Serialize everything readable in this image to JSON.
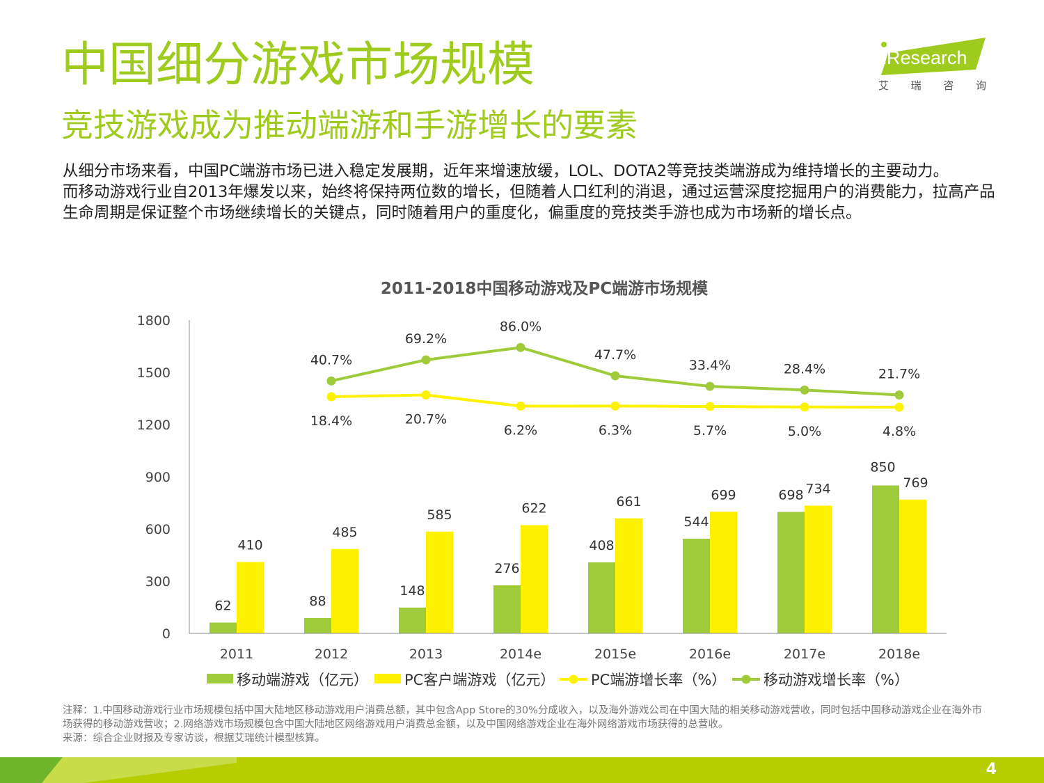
{
  "header": {
    "title": "中国细分游戏市场规模",
    "subtitle": "竞技游戏成为推动端游和手游增长的要素"
  },
  "logo": {
    "brand": "iResearch",
    "cn": [
      "艾",
      "瑞",
      "咨",
      "询"
    ]
  },
  "body": {
    "paragraph1": "从细分市场来看，中国PC端游市场已进入稳定发展期，近年来增速放缓，LOL、DOTA2等竞技类端游成为维持增长的主要动力。",
    "paragraph2": "而移动游戏行业自2013年爆发以来，始终将保持两位数的增长，但随着人口红利的消退，通过运营深度挖掘用户的消费能力，拉高产品生命周期是保证整个市场继续增长的关键点，同时随着用户的重度化，偏重度的竞技类手游也成为市场新的增长点。"
  },
  "chart_data": {
    "type": "bar",
    "title": "2011-2018中国移动游戏及PC端游市场规模",
    "categories": [
      "2011",
      "2012",
      "2013",
      "2014e",
      "2015e",
      "2016e",
      "2017e",
      "2018e"
    ],
    "ylim": [
      0,
      1800
    ],
    "yticks": [
      "0",
      "300",
      "600",
      "900",
      "1200",
      "1500",
      "1800"
    ],
    "series": [
      {
        "name": "移动端游戏（亿元）",
        "kind": "bar",
        "color": "#9fcb3b",
        "values": [
          62,
          88,
          148,
          276,
          408,
          544,
          698,
          850
        ]
      },
      {
        "name": "PC客户端游戏（亿元）",
        "kind": "bar",
        "color": "#fff200",
        "values": [
          410,
          485,
          585,
          622,
          661,
          699,
          734,
          769
        ]
      },
      {
        "name": "PC端游增长率（%）",
        "kind": "line",
        "color": "#fff200",
        "values": [
          null,
          18.4,
          20.7,
          6.2,
          6.3,
          5.7,
          5.0,
          4.8
        ],
        "labels": [
          "",
          "18.4%",
          "20.7%",
          "6.2%",
          "6.3%",
          "5.7%",
          "5.0%",
          "4.8%"
        ]
      },
      {
        "name": "移动游戏增长率（%）",
        "kind": "line",
        "color": "#9fcb3b",
        "values": [
          null,
          40.7,
          69.2,
          86.0,
          47.7,
          33.4,
          28.4,
          21.7
        ],
        "labels": [
          "",
          "40.7%",
          "69.2%",
          "86.0%",
          "47.7%",
          "33.4%",
          "28.4%",
          "21.7%"
        ]
      }
    ]
  },
  "footnote": {
    "line1": "注释：1.中国移动游戏行业市场规模包括中国大陆地区移动游戏用户消费总额，其中包含App Store的30%分成收入，以及海外游戏公司在中国大陆的相关移动游戏营收，同时包括中国移动游戏企业在海外市场获得的移动游戏营收；2.网络游戏市场规模包含中国大陆地区网络游戏用户消费总金额，以及中国网络游戏企业在海外网络游戏市场获得的总营收。",
    "line2": "来源：综合企业财报及专家访谈，根据艾瑞统计模型核算。"
  },
  "footer": {
    "page_number": "4"
  }
}
